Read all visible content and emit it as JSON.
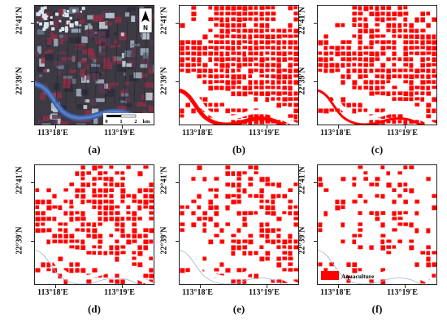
{
  "panels": [
    {
      "id": "a",
      "label": "(a)",
      "kind": "satellite"
    },
    {
      "id": "b",
      "label": "(b)",
      "kind": "classification",
      "density": 0.95
    },
    {
      "id": "c",
      "label": "(c)",
      "kind": "classification",
      "density": 0.85
    },
    {
      "id": "d",
      "label": "(d)",
      "kind": "classification",
      "density": 0.62
    },
    {
      "id": "e",
      "label": "(e)",
      "kind": "classification",
      "density": 0.5
    },
    {
      "id": "f",
      "label": "(f)",
      "kind": "classification",
      "density": 0.28
    }
  ],
  "axis": {
    "lat_top": "22°41′N",
    "lat_mid": "22°39′N",
    "lon_left": "113°18′E",
    "lon_right": "113°19′E"
  },
  "north_arrow": {
    "letter": "N"
  },
  "scalebar": {
    "ticks": [
      "0",
      "1",
      "2"
    ],
    "unit": "km"
  },
  "legend": {
    "label": "Aquaculture",
    "color": "#ff0000"
  },
  "colors": {
    "aquaculture": "#ff0000",
    "river_blue": "#3a5fa8"
  }
}
